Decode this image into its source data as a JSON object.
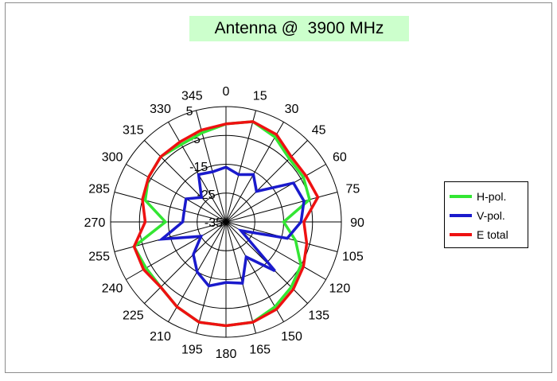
{
  "chart_data": {
    "type": "polar-line",
    "title": "Antenna @  3900 MHz",
    "angle_labels": [
      "0",
      "15",
      "30",
      "45",
      "60",
      "75",
      "90",
      "105",
      "120",
      "135",
      "150",
      "165",
      "180",
      "195",
      "210",
      "225",
      "240",
      "255",
      "270",
      "285",
      "300",
      "315",
      "330",
      "345"
    ],
    "radial_ticks": [
      "5",
      "-5",
      "-15",
      "-25",
      "-35"
    ],
    "rlim": [
      -35,
      5
    ],
    "series": [
      {
        "name": "H-pol.",
        "color": "#33e633",
        "values": [
          -1,
          1,
          -1,
          -4,
          -4,
          -5,
          -15,
          -10,
          -5,
          -3,
          -1,
          1,
          1,
          1,
          -1,
          -3,
          -3,
          -2,
          -14,
          -6,
          -4,
          -3,
          -4,
          -3
        ]
      },
      {
        "name": "V-pol.",
        "color": "#1a1acc",
        "values": [
          -16,
          -18,
          -16,
          -20,
          -8,
          -7,
          -9,
          -13,
          -29,
          -11,
          -21,
          -13,
          -14,
          -12,
          -15,
          -19,
          -25,
          -12,
          -20,
          -20,
          -19,
          -23,
          -16,
          -17
        ]
      },
      {
        "name": "E total",
        "color": "#ee1111",
        "values": [
          -1,
          1,
          0,
          -3,
          -3,
          -2,
          -8,
          -6,
          -4,
          -2,
          0,
          1,
          1,
          1,
          -1,
          -3,
          -2,
          -2,
          -7,
          -5,
          -4,
          -3,
          -3,
          -2
        ]
      }
    ]
  },
  "legend": {
    "items": [
      "H-pol.",
      "V-pol.",
      "E total"
    ]
  }
}
